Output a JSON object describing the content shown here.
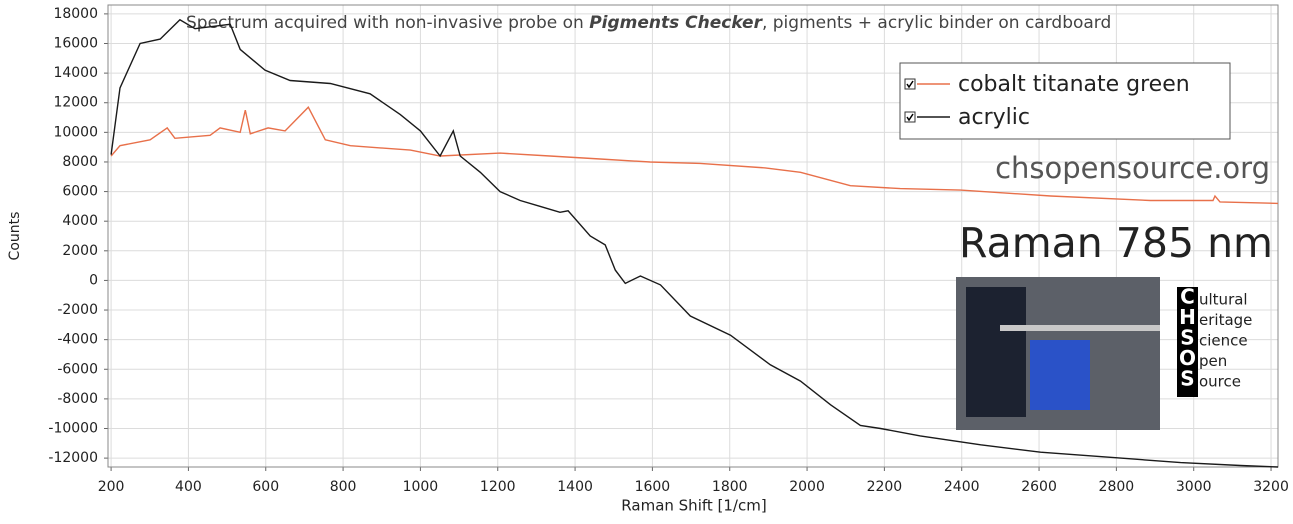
{
  "chart_data": {
    "type": "line",
    "title": [
      "Spectrum acquired with non-invasive probe on ",
      "Pigments Checker",
      ", pigments + acrylic binder on cardboard"
    ],
    "x_label": "Raman Shift [1/cm]",
    "y_label": "Counts",
    "xlim": [
      192,
      3218
    ],
    "ylim": [
      -12600,
      18600
    ],
    "xticks": [
      200,
      400,
      600,
      800,
      1000,
      1200,
      1400,
      1600,
      1800,
      2000,
      2200,
      2400,
      2600,
      2800,
      3000,
      3200
    ],
    "yticks": [
      -12000,
      -10000,
      -8000,
      -6000,
      -4000,
      -2000,
      0,
      2000,
      4000,
      6000,
      8000,
      10000,
      12000,
      14000,
      16000,
      18000
    ],
    "grid": true,
    "legend": "upper-right",
    "series": [
      {
        "name": "cobalt titanate green",
        "color": "#e8704a",
        "x": [
          200,
          223,
          301,
          345,
          365,
          456,
          482,
          534,
          547,
          560,
          606,
          650,
          710,
          754,
          819,
          974,
          1051,
          1206,
          1335,
          1465,
          1594,
          1724,
          1892,
          1983,
          2112,
          2241,
          2397,
          2630,
          2888,
          3050,
          3055,
          3068,
          3218
        ],
        "values": [
          8400,
          9100,
          9500,
          10300,
          9600,
          9800,
          10300,
          10000,
          11500,
          9900,
          10300,
          10100,
          11700,
          9500,
          9100,
          8800,
          8400,
          8600,
          8400,
          8200,
          8000,
          7900,
          7600,
          7300,
          6400,
          6200,
          6100,
          5700,
          5400,
          5400,
          5700,
          5300,
          5200
        ]
      },
      {
        "name": "acrylic",
        "color": "#1a1a1a",
        "x": [
          200,
          223,
          275,
          327,
          378,
          417,
          508,
          534,
          598,
          663,
          767,
          870,
          948,
          1000,
          1051,
          1085,
          1103,
          1155,
          1206,
          1258,
          1310,
          1361,
          1382,
          1439,
          1478,
          1504,
          1530,
          1569,
          1621,
          1698,
          1802,
          1905,
          1983,
          2061,
          2138,
          2190,
          2293,
          2449,
          2604,
          2811,
          2966,
          3121,
          3218
        ],
        "values": [
          8500,
          13000,
          16000,
          16300,
          17600,
          17000,
          17300,
          15600,
          14200,
          13500,
          13300,
          12600,
          11200,
          10100,
          8400,
          10100,
          8400,
          7300,
          6000,
          5400,
          5000,
          4600,
          4700,
          3000,
          2400,
          700,
          -200,
          300,
          -300,
          -2400,
          -3700,
          -5700,
          -6800,
          -8400,
          -9800,
          -10000,
          -10500,
          -11100,
          -11600,
          -12000,
          -12300,
          -12500,
          -12600
        ]
      }
    ],
    "annotations": [
      "chsopensource.org",
      "Raman 785 nm"
    ],
    "logo": {
      "initials": [
        "C",
        "H",
        "S",
        "O",
        "S"
      ],
      "words": [
        "ultural",
        "eritage",
        "cience",
        "pen",
        "ource"
      ]
    }
  }
}
